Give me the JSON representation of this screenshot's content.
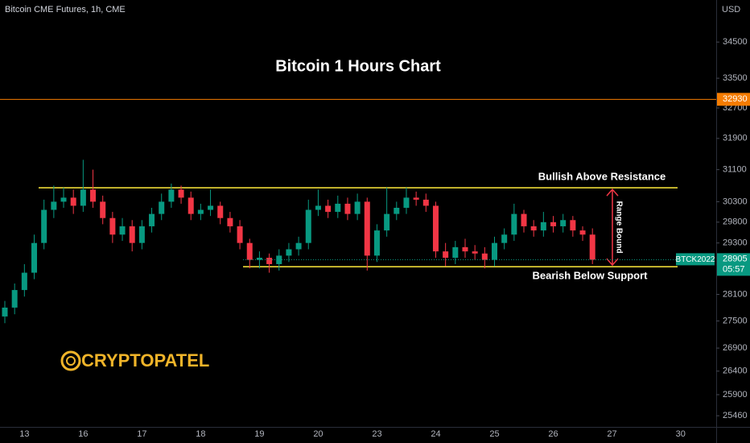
{
  "chart_data": {
    "type": "candlestick",
    "header": "Bitcoin CME Futures, 1h, CME",
    "currency": "USD",
    "title": "Bitcoin 1 Hours Chart",
    "log_scale": true,
    "up_color": "#089981",
    "down_color": "#f23645",
    "categories": [
      null,
      null,
      "13",
      null,
      null,
      null,
      null,
      null,
      "16",
      null,
      null,
      null,
      null,
      null,
      "17",
      null,
      null,
      null,
      null,
      null,
      "18",
      null,
      null,
      null,
      null,
      null,
      "19",
      null,
      null,
      null,
      null,
      null,
      "20",
      null,
      null,
      null,
      null,
      null,
      "23",
      null,
      null,
      null,
      null,
      null,
      "24",
      null,
      null,
      null,
      null,
      null,
      "25",
      null,
      null,
      null,
      null,
      null,
      "26",
      null,
      null,
      null,
      null,
      null,
      "27",
      null,
      null,
      null,
      null,
      null,
      null,
      "30"
    ],
    "open": [
      27600,
      27800,
      28200,
      28600,
      29300,
      30100,
      30300,
      30400,
      30200,
      30600,
      30300,
      29900,
      29500,
      29700,
      29300,
      29700,
      30000,
      30300,
      30600,
      30400,
      30000,
      30100,
      30200,
      29900,
      29700,
      29300,
      28900,
      28950,
      28800,
      29000,
      29150,
      29300,
      30100,
      30200,
      30050,
      30250,
      30000,
      30300,
      29000,
      29600,
      30000,
      30150,
      30400,
      30350,
      30200,
      29100,
      28950,
      29200,
      29100,
      29050,
      28900,
      29300,
      29500,
      30000,
      29700,
      29600,
      29800,
      29700,
      29850,
      29600,
      29500,
      null,
      null,
      null,
      null,
      null,
      null,
      null,
      null,
      null
    ],
    "high": [
      27950,
      28350,
      28800,
      29500,
      30350,
      30700,
      30650,
      30600,
      31350,
      31100,
      30450,
      30050,
      29900,
      29850,
      29850,
      30150,
      30500,
      30750,
      30700,
      30550,
      30250,
      30600,
      30300,
      30050,
      29850,
      29400,
      29100,
      29050,
      29150,
      29300,
      29450,
      30350,
      30600,
      30350,
      30450,
      30400,
      30500,
      30400,
      29750,
      30650,
      30300,
      30650,
      30550,
      30500,
      30300,
      29300,
      29350,
      29400,
      29250,
      29200,
      29450,
      29650,
      30250,
      30100,
      29850,
      30050,
      29950,
      30000,
      29950,
      29700,
      29650,
      null,
      null,
      null,
      null,
      null,
      null,
      null,
      null,
      null
    ],
    "low": [
      27450,
      27650,
      28050,
      28450,
      29150,
      29900,
      30150,
      30000,
      30050,
      30150,
      29750,
      29300,
      29350,
      29100,
      29150,
      29550,
      29850,
      30150,
      30250,
      29850,
      29850,
      29950,
      29750,
      29550,
      29150,
      28700,
      28700,
      28600,
      28650,
      28850,
      29000,
      29150,
      29950,
      29900,
      29900,
      29850,
      29850,
      28650,
      28850,
      29450,
      29850,
      30000,
      30200,
      30050,
      28950,
      28750,
      28800,
      28950,
      28900,
      28700,
      28750,
      29150,
      29350,
      29550,
      29450,
      29450,
      29550,
      29550,
      29450,
      29350,
      28800,
      null,
      null,
      null,
      null,
      null,
      null,
      null,
      null,
      null
    ],
    "close": [
      27800,
      28200,
      28600,
      29300,
      30100,
      30300,
      30400,
      30200,
      30600,
      30300,
      29900,
      29500,
      29700,
      29300,
      29700,
      30000,
      30300,
      30600,
      30400,
      30000,
      30100,
      30200,
      29900,
      29700,
      29300,
      28900,
      28950,
      28800,
      29000,
      29150,
      29300,
      30100,
      30200,
      30050,
      30250,
      30000,
      30300,
      29000,
      29600,
      30000,
      30150,
      30400,
      30350,
      30200,
      29100,
      28950,
      29200,
      29100,
      29050,
      28900,
      29300,
      29500,
      30000,
      29700,
      29600,
      29800,
      29700,
      29850,
      29600,
      29500,
      28905,
      null,
      null,
      null,
      null,
      null,
      null,
      null,
      null,
      null
    ],
    "ylim": [
      25230,
      35700
    ],
    "yticks": [
      34500,
      33500,
      32700,
      31900,
      31100,
      30300,
      29800,
      29300,
      28100,
      27500,
      26900,
      26400,
      25900,
      25460
    ],
    "levels": [
      {
        "value": 32930,
        "color": "#f57c00"
      },
      {
        "value": 30645,
        "color": "#ffeb3b",
        "label": "Bullish Above Resistance"
      },
      {
        "value": 28740,
        "color": "#ffeb3b",
        "label": "Bearish Below Support"
      }
    ],
    "range_label": "Range Bound",
    "symbol_label": "BTCK2022",
    "countdown": "05:57",
    "brand": "CRYPTOPATEL"
  }
}
